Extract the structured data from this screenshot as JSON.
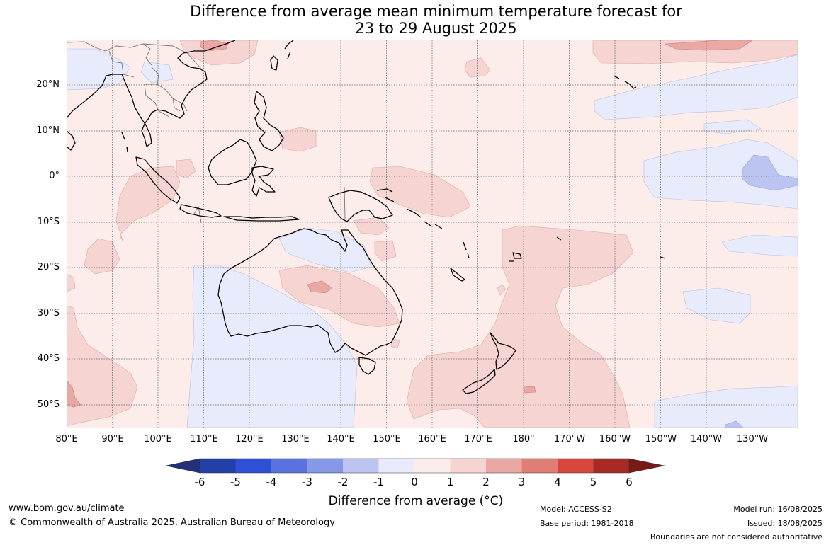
{
  "title_line1": "Difference from average mean minimum temperature forecast for",
  "title_line2": "23 to 29 August 2025",
  "lat_labels": [
    "20°N",
    "10°N",
    "0°",
    "10°S",
    "20°S",
    "30°S",
    "40°S",
    "50°S"
  ],
  "lon_labels": [
    "80°E",
    "90°E",
    "100°E",
    "110°E",
    "120°E",
    "130°E",
    "140°E",
    "150°E",
    "160°E",
    "170°E",
    "180°",
    "170°W",
    "160°W",
    "150°W",
    "140°W",
    "130°W"
  ],
  "colorbar": {
    "ticks": [
      "-6",
      "-5",
      "-4",
      "-3",
      "-2",
      "-1",
      "0",
      "1",
      "2",
      "3",
      "4",
      "5",
      "6"
    ],
    "colors": [
      "#22307a",
      "#2340a8",
      "#2e4fd6",
      "#5a72e0",
      "#8798e8",
      "#bcc5f2",
      "#e8ebfb",
      "#fcecea",
      "#f5d4d2",
      "#eaa8a4",
      "#e07e76",
      "#d8463c",
      "#a82a24",
      "#7a1a16"
    ],
    "label": "Difference from average (°C)"
  },
  "footer": {
    "website": "www.bom.gov.au/climate",
    "copyright": "© Commonwealth of Australia 2025, Australian Bureau of Meteorology",
    "model": "Model: ACCESS-S2",
    "base_period": "Base period: 1981-2018",
    "model_run": "Model run: 16/08/2025",
    "issued": "Issued: 18/08/2025",
    "disclaimer": "Boundaries are not considered authoritative"
  }
}
